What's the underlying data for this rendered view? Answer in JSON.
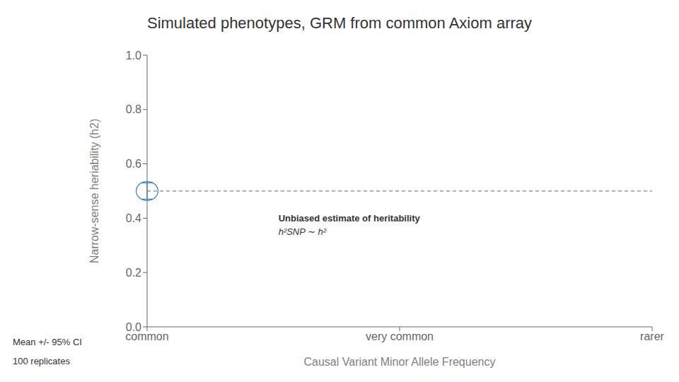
{
  "chart_data": {
    "type": "scatter",
    "title": "Simulated phenotypes, GRM from common Axiom array",
    "xlabel": "Causal Variant Minor Allele Frequency",
    "ylabel": "Narrow-sense heriability (h2)",
    "categories": [
      "common",
      "very common",
      "rarer"
    ],
    "values": [
      0.5,
      null,
      null
    ],
    "error": [
      0.03,
      null,
      null
    ],
    "ylim": [
      0.0,
      1.0
    ],
    "yticks": [
      {
        "value": 0,
        "label": "0.0"
      },
      0.2,
      0.4,
      0.6,
      0.8,
      {
        "value": 1,
        "label": "1.0"
      }
    ],
    "reference_line": {
      "y": 0.5,
      "line_style": "dashed"
    },
    "annotations": [
      "Unbiased estimate of heritability",
      "h²SNP ∼ h²",
      "Mean +/- 95% CI",
      "100 replicates"
    ],
    "grid": false
  }
}
